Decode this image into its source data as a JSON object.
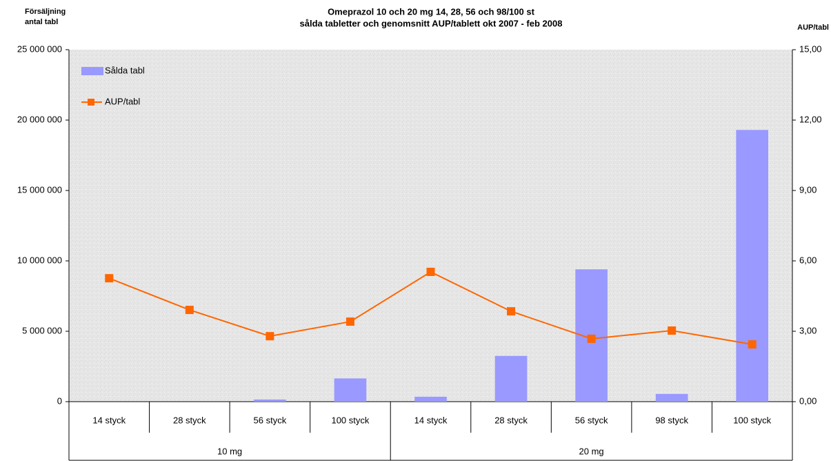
{
  "chart_data": {
    "type": "bar_line",
    "title": [
      "Omeprazol 10 och 20 mg 14, 28, 56 och 98/100 st",
      "sålda tabletter och genomsnitt AUP/tablett okt 2007 - feb 2008"
    ],
    "y_label": [
      "Försäljning",
      "antal tabl"
    ],
    "y2_label": "AUP/tabl",
    "groups": [
      {
        "name": "10 mg",
        "categories": [
          "14 styck",
          "28 styck",
          "56 styck",
          "100 styck"
        ]
      },
      {
        "name": "20 mg",
        "categories": [
          "14 styck",
          "28 styck",
          "56 styck",
          "98 styck",
          "100 styck"
        ]
      }
    ],
    "series": [
      {
        "name": "Sålda tabl",
        "kind": "bar",
        "color": "#9999ff",
        "values": [
          0,
          0,
          150000,
          1650000,
          350000,
          3250000,
          9400000,
          550000,
          19300000
        ]
      },
      {
        "name": "AUP/tabl",
        "kind": "line",
        "axis": "y2",
        "color": "#ff6600",
        "values": [
          5.26,
          3.91,
          2.79,
          3.41,
          5.53,
          3.85,
          2.68,
          3.03,
          2.44
        ]
      }
    ],
    "ylim": [
      0,
      25000000
    ],
    "yticks": [
      {
        "value": 0,
        "label": "0"
      },
      {
        "value": 5000000,
        "label": "5 000 000"
      },
      {
        "value": 10000000,
        "label": "10 000 000"
      },
      {
        "value": 15000000,
        "label": "15 000 000"
      },
      {
        "value": 20000000,
        "label": "20 000 000"
      },
      {
        "value": 25000000,
        "label": "25 000 000"
      }
    ],
    "y2lim": [
      0,
      15
    ],
    "y2ticks": [
      {
        "value": 0,
        "label": "0,00"
      },
      {
        "value": 3,
        "label": "3,00"
      },
      {
        "value": 6,
        "label": "6,00"
      },
      {
        "value": 9,
        "label": "9,00"
      },
      {
        "value": 12,
        "label": "12,00"
      },
      {
        "value": 15,
        "label": "15,00"
      }
    ],
    "legend": "top-left"
  }
}
